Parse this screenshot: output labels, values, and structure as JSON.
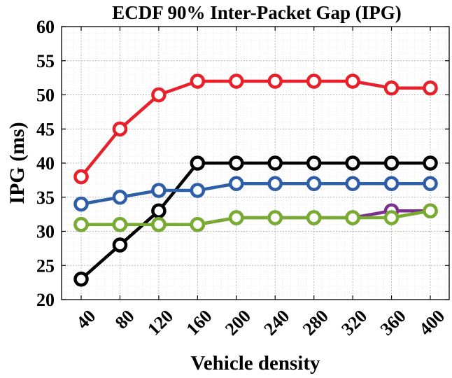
{
  "chart_data": {
    "type": "line",
    "title": "ECDF 90% Inter-Packet Gap (IPG)",
    "xlabel": "Vehicle density",
    "ylabel": "IPG (ms)",
    "categories": [
      40,
      80,
      120,
      160,
      200,
      240,
      280,
      320,
      360,
      400
    ],
    "x_tick_labels": [
      "40",
      "80",
      "120",
      "160",
      "200",
      "240",
      "280",
      "320",
      "360",
      "400"
    ],
    "y_ticks": [
      20,
      25,
      30,
      35,
      40,
      45,
      50,
      55,
      60
    ],
    "y_tick_labels": [
      "20",
      "25",
      "30",
      "35",
      "40",
      "45",
      "50",
      "55",
      "60"
    ],
    "ylim": [
      20,
      60
    ],
    "grid": true,
    "minor_grid": true,
    "series": [
      {
        "name": "purple",
        "color": "#7e2f8e",
        "values": [
          31,
          31,
          31,
          31,
          32,
          32,
          32,
          32,
          33,
          33
        ]
      },
      {
        "name": "red",
        "color": "#e8202a",
        "values": [
          38,
          45,
          50,
          52,
          52,
          52,
          52,
          52,
          51,
          51
        ]
      },
      {
        "name": "black",
        "color": "#000000",
        "values": [
          23,
          28,
          33,
          40,
          40,
          40,
          40,
          40,
          40,
          40
        ]
      },
      {
        "name": "blue",
        "color": "#2f5ea8",
        "values": [
          34,
          35,
          36,
          36,
          37,
          37,
          37,
          37,
          37,
          37
        ]
      },
      {
        "name": "green",
        "color": "#77ac30",
        "values": [
          31,
          31,
          31,
          31,
          32,
          32,
          32,
          32,
          32,
          33
        ]
      }
    ]
  }
}
